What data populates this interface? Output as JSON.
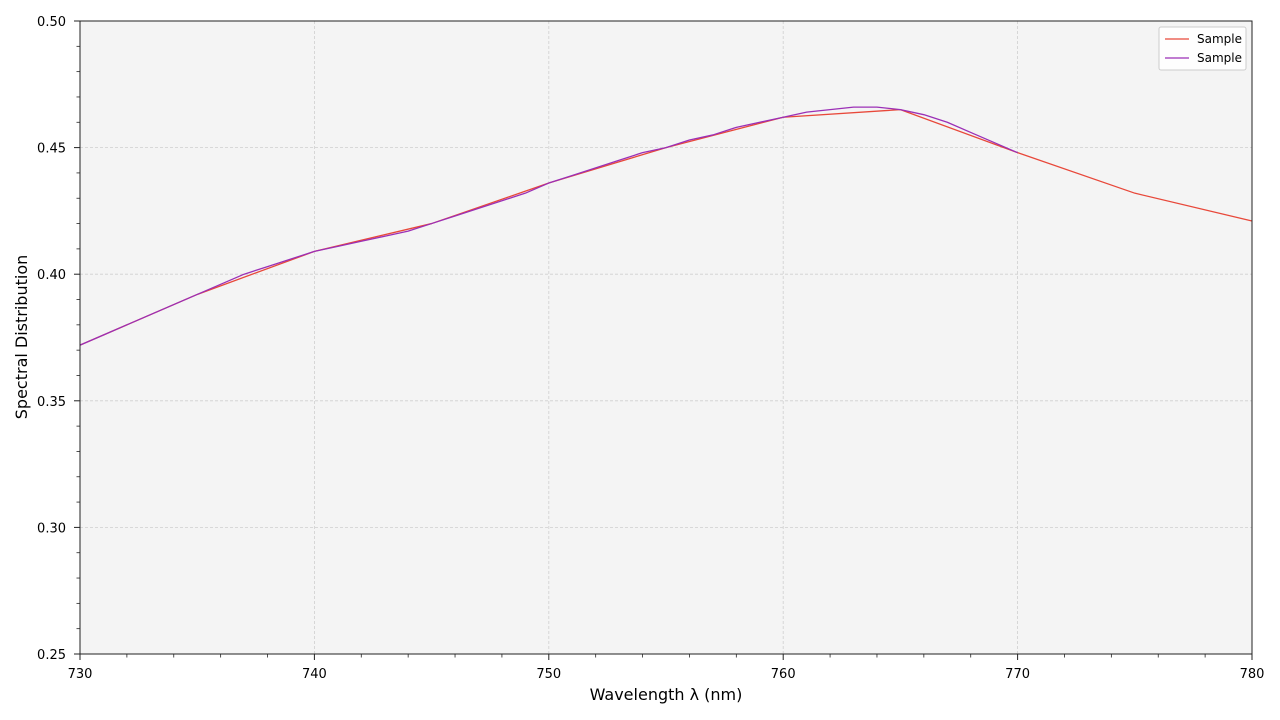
{
  "chart_data": {
    "type": "line",
    "xlabel": "Wavelength λ (nm)",
    "ylabel": "Spectral Distribution",
    "xlim": [
      730,
      780
    ],
    "ylim": [
      0.25,
      0.5
    ],
    "x_ticks": [
      730,
      740,
      750,
      760,
      770,
      780
    ],
    "x_tick_labels": [
      "730",
      "740",
      "750",
      "760",
      "770",
      "780"
    ],
    "y_ticks": [
      0.25,
      0.3,
      0.35,
      0.4,
      0.45,
      0.5
    ],
    "y_tick_labels": [
      "0.25",
      "0.30",
      "0.35",
      "0.40",
      "0.45",
      "0.50"
    ],
    "grid": true,
    "legend_position": "top-right",
    "series": [
      {
        "name": "Sample",
        "color": "#e8483a",
        "x": [
          730,
          735,
          740,
          745,
          750,
          755,
          760,
          765,
          770,
          775,
          780
        ],
        "values": [
          0.372,
          0.392,
          0.409,
          0.42,
          0.436,
          0.45,
          0.462,
          0.465,
          0.448,
          0.432,
          0.421
        ]
      },
      {
        "name": "Sample",
        "color": "#9b2fb6",
        "x": [
          730,
          731,
          732,
          733,
          734,
          735,
          736,
          737,
          738,
          739,
          740,
          741,
          742,
          743,
          744,
          745,
          746,
          747,
          748,
          749,
          750,
          751,
          752,
          753,
          754,
          755,
          756,
          757,
          758,
          759,
          760,
          761,
          762,
          763,
          764,
          765,
          766,
          767,
          768,
          769,
          770
        ],
        "values": [
          0.372,
          0.376,
          0.38,
          0.384,
          0.388,
          0.392,
          0.396,
          0.4,
          0.403,
          0.406,
          0.409,
          0.411,
          0.413,
          0.415,
          0.417,
          0.42,
          0.423,
          0.426,
          0.429,
          0.432,
          0.436,
          0.439,
          0.442,
          0.445,
          0.448,
          0.45,
          0.453,
          0.455,
          0.458,
          0.46,
          0.462,
          0.464,
          0.465,
          0.466,
          0.466,
          0.465,
          0.463,
          0.46,
          0.456,
          0.452,
          0.448
        ]
      }
    ]
  }
}
